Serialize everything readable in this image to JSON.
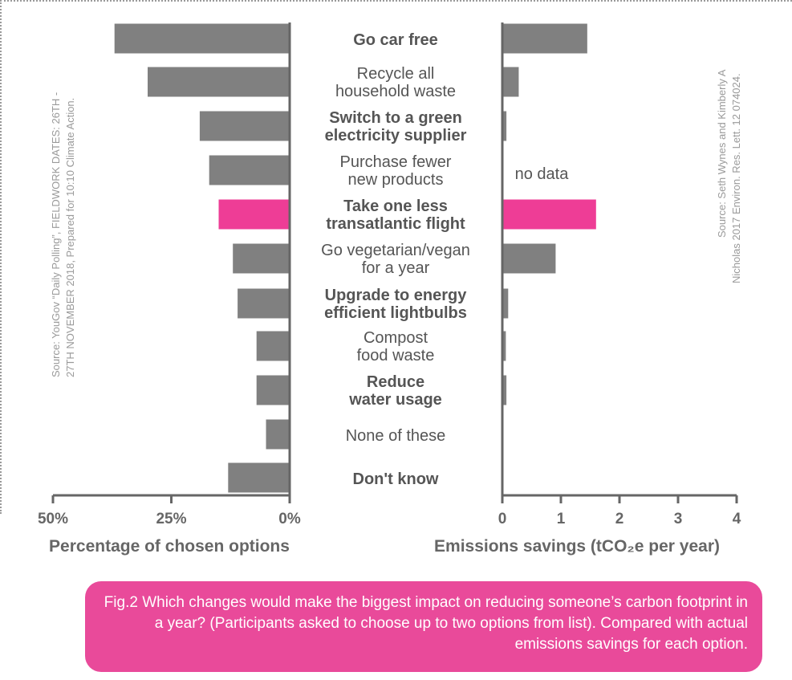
{
  "colors": {
    "bar": "#808080",
    "highlight": "#ee3d96",
    "axis": "#666666",
    "caption_bg": "#e94a9a"
  },
  "chart_data": [
    {
      "type": "bar",
      "orientation": "horizontal",
      "direction": "right-to-left",
      "xlabel": "Percentage of chosen options",
      "xlim": [
        0,
        50
      ],
      "xticks": [
        "50%",
        "25%",
        "0%"
      ],
      "categories": [
        "Go car free",
        "Recycle all household waste",
        "Switch to a green electricity supplier",
        "Purchase fewer new products",
        "Take one less transatlantic flight",
        "Go vegetarian/vegan for a year",
        "Upgrade to energy efficient lightbulbs",
        "Compost food waste",
        "Reduce water usage",
        "None of these",
        "Don't know"
      ],
      "values": [
        37,
        30,
        19,
        17,
        15,
        12,
        11,
        7,
        7,
        5,
        13
      ],
      "highlight_index": 4,
      "source": [
        "Source: YouGov “Daily Polling”, FIELDWORK DATES: 26TH -",
        "27TH NOVEMBER 2018, Prepared for 10:10 Climate Action."
      ]
    },
    {
      "type": "bar",
      "orientation": "horizontal",
      "xlabel": "Emissions savings (tCO₂e per year)",
      "xlim": [
        0,
        4
      ],
      "xticks": [
        "0",
        "1",
        "2",
        "3",
        "4"
      ],
      "categories": [
        "Go car free",
        "Recycle all household waste",
        "Switch to a green electricity supplier",
        "Purchase fewer new products",
        "Take one less transatlantic flight",
        "Go vegetarian/vegan for a year",
        "Upgrade to energy efficient lightbulbs",
        "Compost food waste",
        "Reduce water usage",
        "None of these",
        "Don't know"
      ],
      "values": [
        1.45,
        0.28,
        0.07,
        null,
        1.6,
        0.91,
        0.1,
        0.06,
        0.07,
        null,
        null
      ],
      "no_data_label": "no data",
      "highlight_index": 4,
      "source": [
        "Source: Seth Wynes and Kimberly A",
        "Nicholas 2017 Environ. Res. Lett. 12 074024."
      ]
    }
  ],
  "category_labels": [
    {
      "lines": [
        "Go car free"
      ],
      "bold": true
    },
    {
      "lines": [
        "Recycle all",
        "household waste"
      ],
      "bold": false
    },
    {
      "lines": [
        "Switch to a green",
        "electricity supplier"
      ],
      "bold": true
    },
    {
      "lines": [
        "Purchase fewer",
        "new products"
      ],
      "bold": false
    },
    {
      "lines": [
        "Take one less",
        "transatlantic flight"
      ],
      "bold": true
    },
    {
      "lines": [
        "Go vegetarian/vegan",
        "for a year"
      ],
      "bold": false
    },
    {
      "lines": [
        "Upgrade to energy",
        "efficient lightbulbs"
      ],
      "bold": true
    },
    {
      "lines": [
        "Compost",
        "food waste"
      ],
      "bold": false
    },
    {
      "lines": [
        "Reduce",
        "water usage"
      ],
      "bold": true
    },
    {
      "lines": [
        "None of these"
      ],
      "bold": false
    },
    {
      "lines": [
        "Don't know"
      ],
      "bold": true
    }
  ],
  "caption": "Fig.2 Which changes would make the biggest impact on reducing someone’s carbon footprint in a year? (Participants asked to choose up to two options from list). Compared with actual emissions savings for each option."
}
